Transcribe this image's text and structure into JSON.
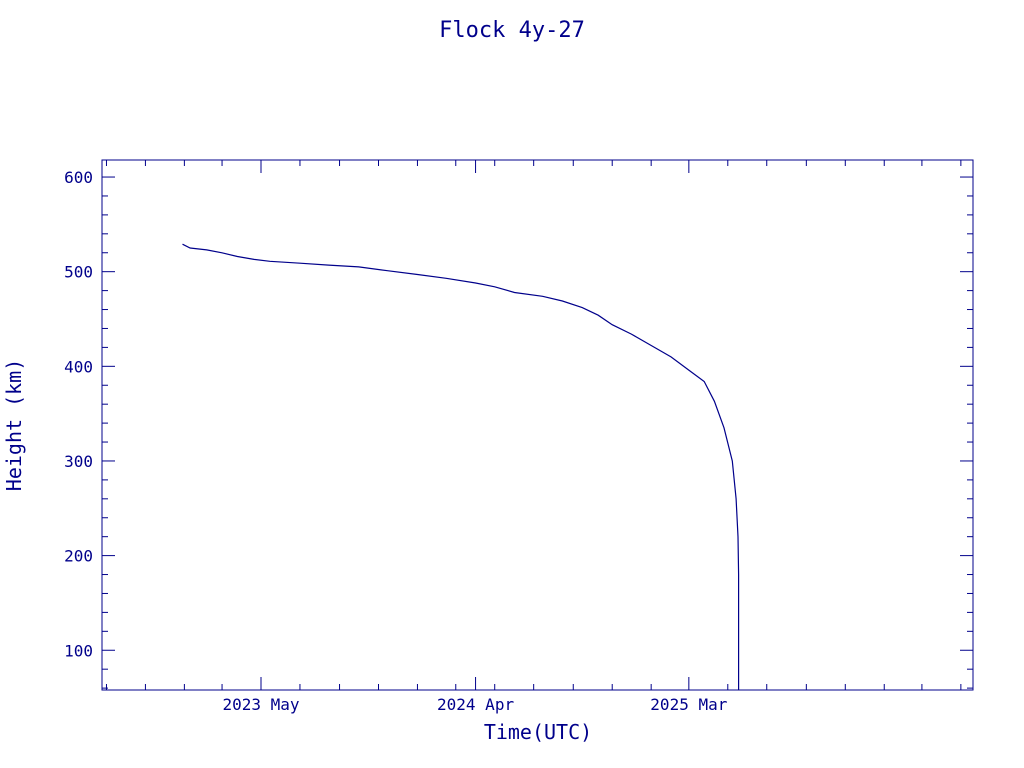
{
  "chart_data": {
    "type": "line",
    "title": "Flock 4y-27",
    "xlabel": "Time(UTC)",
    "ylabel": "Height (km)",
    "color": "#00008b",
    "grid": false,
    "legend": "none",
    "x_type": "date",
    "xlim": [
      "2022-08-25",
      "2026-05-20"
    ],
    "ylim": [
      58,
      618
    ],
    "x_ticks": [
      {
        "date": "2023-05-01",
        "label": "2023 May"
      },
      {
        "date": "2024-04-01",
        "label": "2024 Apr"
      },
      {
        "date": "2025-03-01",
        "label": "2025 Mar"
      }
    ],
    "y_ticks": [
      {
        "value": 100,
        "label": "100"
      },
      {
        "value": 200,
        "label": "200"
      },
      {
        "value": 300,
        "label": "300"
      },
      {
        "value": 400,
        "label": "400"
      },
      {
        "value": 500,
        "label": "500"
      },
      {
        "value": 600,
        "label": "600"
      }
    ],
    "series": [
      {
        "points": [
          [
            "2022-12-29",
            529
          ],
          [
            "2023-01-10",
            525
          ],
          [
            "2023-02-05",
            523
          ],
          [
            "2023-03-01",
            520
          ],
          [
            "2023-03-25",
            516
          ],
          [
            "2023-04-20",
            513
          ],
          [
            "2023-05-15",
            511
          ],
          [
            "2023-07-01",
            509
          ],
          [
            "2023-08-15",
            507
          ],
          [
            "2023-10-01",
            505
          ],
          [
            "2023-11-15",
            501
          ],
          [
            "2024-01-01",
            497
          ],
          [
            "2024-02-15",
            493
          ],
          [
            "2024-04-01",
            488
          ],
          [
            "2024-05-01",
            484
          ],
          [
            "2024-06-01",
            478
          ],
          [
            "2024-07-15",
            474
          ],
          [
            "2024-08-15",
            469
          ],
          [
            "2024-09-15",
            462
          ],
          [
            "2024-10-10",
            454
          ],
          [
            "2024-11-01",
            444
          ],
          [
            "2024-12-01",
            434
          ],
          [
            "2025-01-01",
            422
          ],
          [
            "2025-02-01",
            410
          ],
          [
            "2025-03-01",
            396
          ],
          [
            "2025-03-25",
            384
          ],
          [
            "2025-04-10",
            363
          ],
          [
            "2025-04-25",
            335
          ],
          [
            "2025-05-08",
            300
          ],
          [
            "2025-05-14",
            260
          ],
          [
            "2025-05-17",
            220
          ],
          [
            "2025-05-18",
            180
          ],
          [
            "2025-05-18",
            120
          ],
          [
            "2025-05-18",
            58
          ]
        ]
      }
    ]
  }
}
